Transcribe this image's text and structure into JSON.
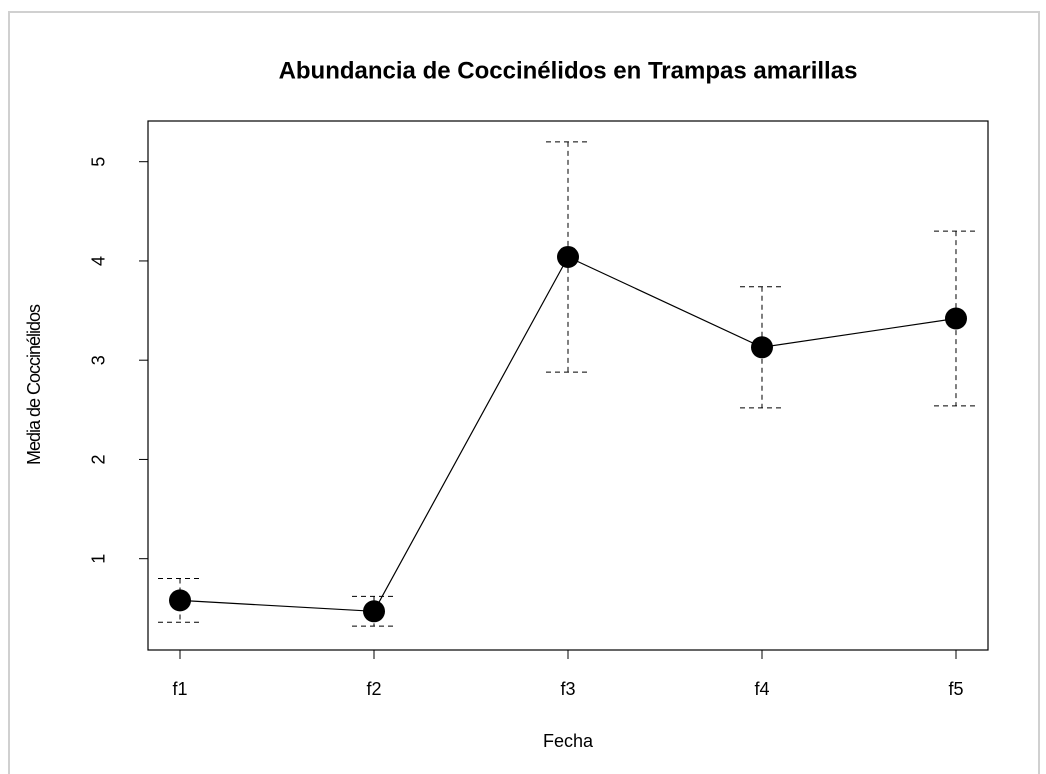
{
  "chart_data": {
    "type": "line",
    "title": "Abundancia de Coccinélidos en Trampas amarillas",
    "xlabel": "Fecha",
    "ylabel": "Media de Coccinélidos",
    "categories": [
      "f1",
      "f2",
      "f3",
      "f4",
      "f5"
    ],
    "values": [
      0.58,
      0.47,
      4.04,
      3.13,
      3.42
    ],
    "errors": [
      0.22,
      0.15,
      1.16,
      0.61,
      0.88
    ],
    "color": "#000000",
    "ylim": [
      0.08,
      5.41
    ],
    "yticks": [
      1,
      2,
      3,
      4,
      5
    ],
    "grid": false
  }
}
